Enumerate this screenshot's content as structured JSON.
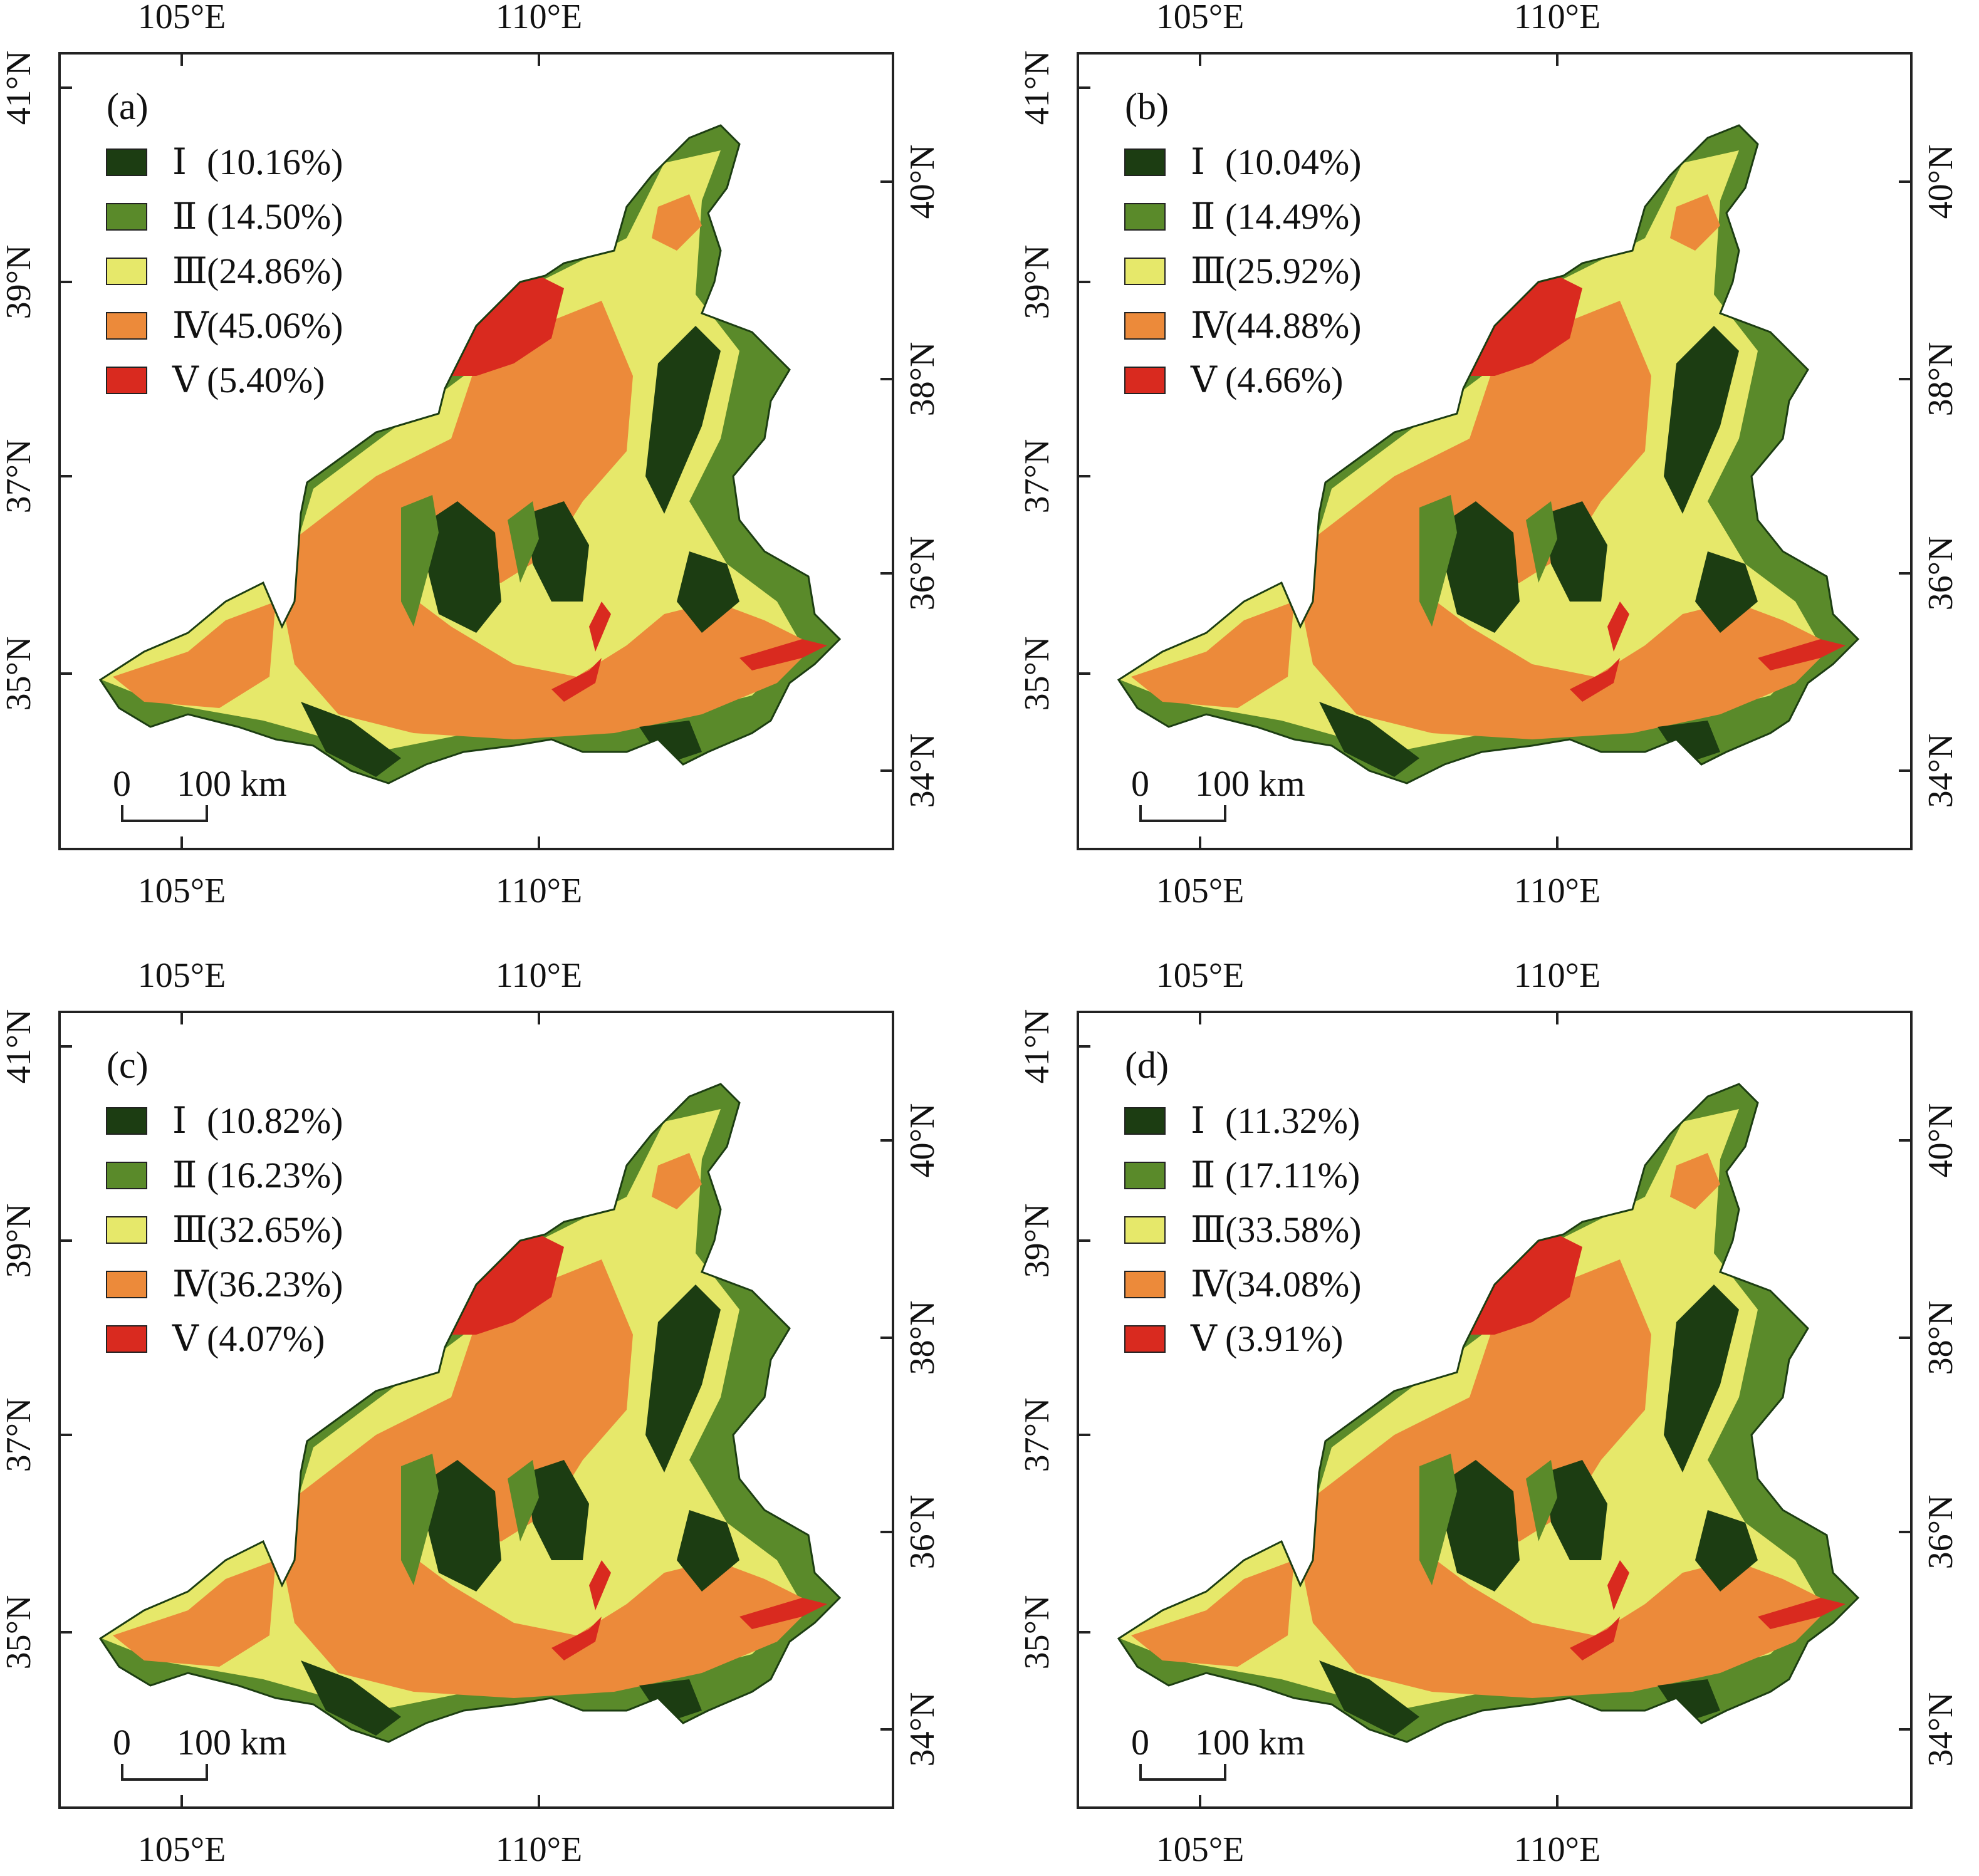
{
  "colors": {
    "class_I": "#1c3d12",
    "class_II": "#5a8a2a",
    "class_III": "#e6e86a",
    "class_IV": "#ec8a3a",
    "class_V": "#d92a1f",
    "frame": "#222222"
  },
  "axes": {
    "lon_ticks": [
      "105°E",
      "110°E"
    ],
    "lat_ticks_left": [
      "41°N",
      "39°N",
      "37°N",
      "35°N"
    ],
    "lat_ticks_right": [
      "40°N",
      "38°N",
      "36°N",
      "34°N"
    ]
  },
  "scale_bar": {
    "zero": "0",
    "distance": "100 km"
  },
  "panels": [
    {
      "label": "(a)",
      "legend": [
        {
          "roman": "Ⅰ",
          "pct": "(10.16%)"
        },
        {
          "roman": "Ⅱ",
          "pct": "(14.50%)"
        },
        {
          "roman": "Ⅲ",
          "pct": "(24.86%)"
        },
        {
          "roman": "Ⅳ",
          "pct": "(45.06%)"
        },
        {
          "roman": "Ⅴ",
          "pct": "(5.40%)"
        }
      ]
    },
    {
      "label": "(b)",
      "legend": [
        {
          "roman": "Ⅰ",
          "pct": "(10.04%)"
        },
        {
          "roman": "Ⅱ",
          "pct": "(14.49%)"
        },
        {
          "roman": "Ⅲ",
          "pct": "(25.92%)"
        },
        {
          "roman": "Ⅳ",
          "pct": "(44.88%)"
        },
        {
          "roman": "Ⅴ",
          "pct": "(4.66%)"
        }
      ]
    },
    {
      "label": "(c)",
      "legend": [
        {
          "roman": "Ⅰ",
          "pct": "(10.82%)"
        },
        {
          "roman": "Ⅱ",
          "pct": "(16.23%)"
        },
        {
          "roman": "Ⅲ",
          "pct": "(32.65%)"
        },
        {
          "roman": "Ⅳ",
          "pct": "(36.23%)"
        },
        {
          "roman": "Ⅴ",
          "pct": "(4.07%)"
        }
      ]
    },
    {
      "label": "(d)",
      "legend": [
        {
          "roman": "Ⅰ",
          "pct": "(11.32%)"
        },
        {
          "roman": "Ⅱ",
          "pct": "(17.11%)"
        },
        {
          "roman": "Ⅲ",
          "pct": "(33.58%)"
        },
        {
          "roman": "Ⅳ",
          "pct": "(34.08%)"
        },
        {
          "roman": "Ⅴ",
          "pct": "(3.91%)"
        }
      ]
    }
  ]
}
